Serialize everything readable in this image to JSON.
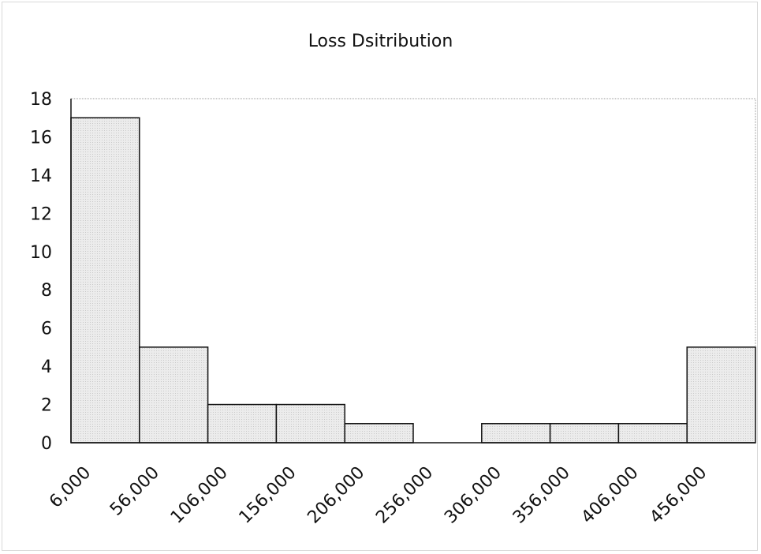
{
  "chart_data": {
    "type": "bar",
    "title": "Loss Dsitribution",
    "xlabel": "",
    "ylabel": "",
    "categories": [
      "6,000",
      "56,000",
      "106,000",
      "156,000",
      "206,000",
      "256,000",
      "306,000",
      "356,000",
      "406,000",
      "456,000"
    ],
    "values": [
      17,
      5,
      2,
      2,
      1,
      0,
      1,
      1,
      1,
      5
    ],
    "ylim": [
      0,
      18
    ],
    "yticks": [
      0,
      2,
      4,
      6,
      8,
      10,
      12,
      14,
      16,
      18
    ],
    "grid": false,
    "legend": "none",
    "bar_color": "#e6e6e6",
    "bar_edge_color": "#111111"
  }
}
